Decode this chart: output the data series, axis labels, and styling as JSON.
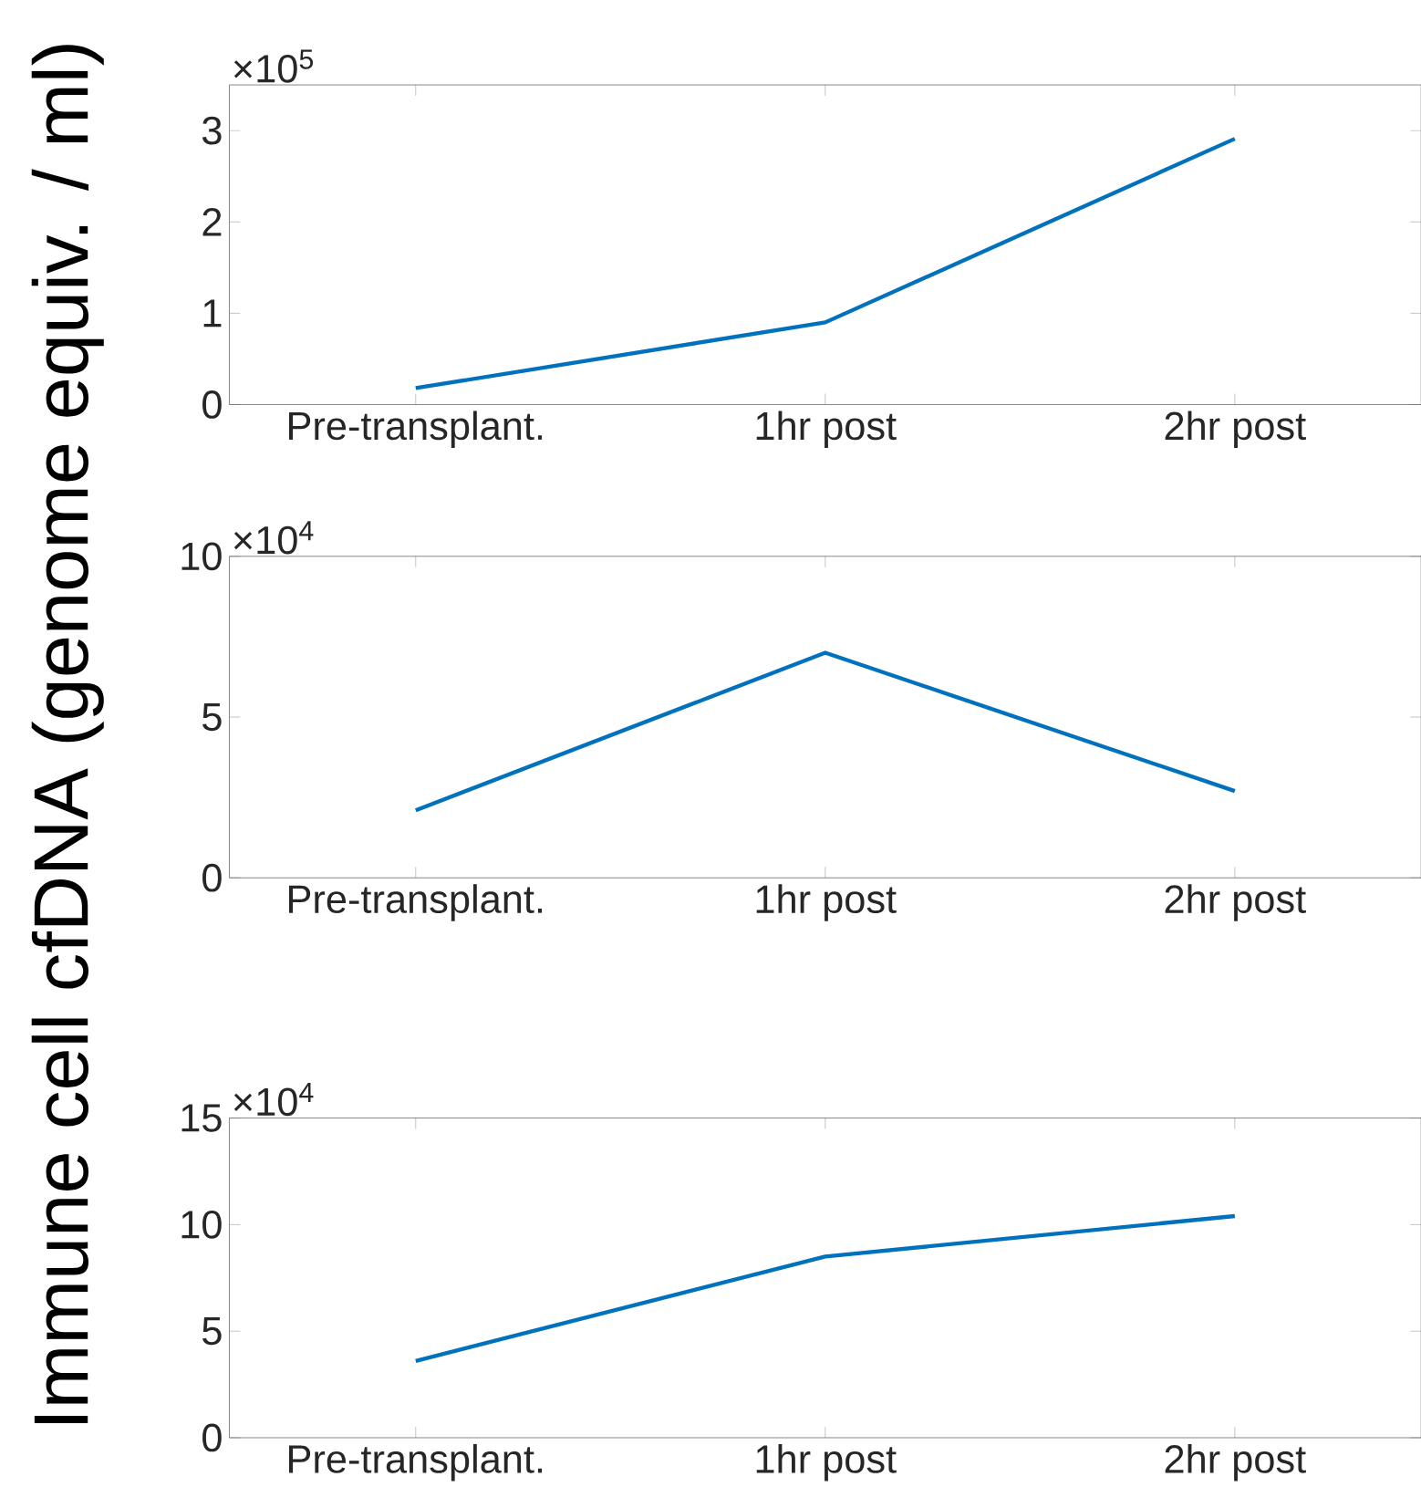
{
  "chart_data": [
    {
      "type": "line",
      "categories": [
        "Pre-transplant.",
        "1hr post",
        "2hr post"
      ],
      "values": [
        0.18,
        0.9,
        2.91
      ],
      "color": "#0072bd",
      "ylim": [
        0,
        3.5
      ],
      "yticks": [
        0,
        1,
        2,
        3
      ],
      "annotations": [
        "×10$^{5}$"
      ],
      "line_style": "solid"
    },
    {
      "type": "line",
      "categories": [
        "Pre-transplant.",
        "1hr post",
        "2hr post"
      ],
      "values": [
        2.1,
        7.0,
        2.7
      ],
      "color": "#0072bd",
      "ylim": [
        0,
        10
      ],
      "yticks": [
        0,
        5,
        10
      ],
      "annotations": [
        "×10$^{4}$"
      ],
      "ylabel": "Immune cell cfDNA (genome equiv. / ml)",
      "line_style": "solid"
    },
    {
      "type": "line",
      "categories": [
        "Pre-transplant.",
        "1hr post",
        "2hr post"
      ],
      "values": [
        3.6,
        8.5,
        10.4
      ],
      "color": "#0072bd",
      "ylim": [
        0,
        15
      ],
      "yticks": [
        0,
        5,
        10,
        15
      ],
      "annotations": [
        "×10$^{4}$"
      ],
      "line_style": "solid"
    }
  ]
}
